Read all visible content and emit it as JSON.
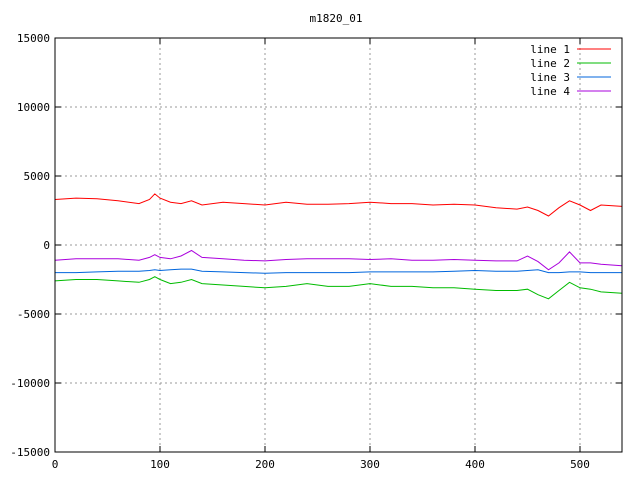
{
  "chart_data": {
    "type": "line",
    "title": "m1820_01",
    "xlabel": "",
    "ylabel": "",
    "xlim": [
      0,
      540
    ],
    "ylim": [
      -15000,
      15000
    ],
    "x_ticks": [
      {
        "value": 0,
        "label": "0"
      },
      {
        "value": 100,
        "label": "100"
      },
      {
        "value": 200,
        "label": "200"
      },
      {
        "value": 300,
        "label": "300"
      },
      {
        "value": 400,
        "label": "400"
      },
      {
        "value": 500,
        "label": "500"
      }
    ],
    "y_ticks": [
      {
        "value": 15000,
        "label": "15000"
      },
      {
        "value": 10000,
        "label": "10000"
      },
      {
        "value": 5000,
        "label": "5000"
      },
      {
        "value": 0,
        "label": "0"
      },
      {
        "value": -5000,
        "label": "-5000"
      },
      {
        "value": -10000,
        "label": "-10000"
      },
      {
        "value": -15000,
        "label": "-15000"
      }
    ],
    "grid": true,
    "legend_position": "top-right",
    "x": [
      0,
      20,
      40,
      60,
      80,
      90,
      95,
      100,
      110,
      120,
      130,
      140,
      160,
      180,
      200,
      220,
      240,
      260,
      280,
      300,
      320,
      340,
      360,
      380,
      400,
      420,
      440,
      450,
      460,
      470,
      480,
      490,
      500,
      510,
      520,
      540
    ],
    "series": [
      {
        "name": "line 1",
        "color": "#ff0000",
        "values": [
          3300,
          3400,
          3350,
          3200,
          3000,
          3300,
          3700,
          3400,
          3100,
          3000,
          3200,
          2900,
          3100,
          3000,
          2900,
          3100,
          2950,
          2950,
          3000,
          3100,
          3000,
          3000,
          2900,
          2950,
          2900,
          2700,
          2600,
          2750,
          2500,
          2100,
          2700,
          3200,
          2900,
          2500,
          2900,
          2800
        ]
      },
      {
        "name": "line 2",
        "color": "#00bb00",
        "values": [
          -2600,
          -2500,
          -2500,
          -2600,
          -2700,
          -2500,
          -2300,
          -2500,
          -2800,
          -2700,
          -2500,
          -2800,
          -2900,
          -3000,
          -3100,
          -3000,
          -2800,
          -3000,
          -3000,
          -2800,
          -3000,
          -3000,
          -3100,
          -3100,
          -3200,
          -3300,
          -3300,
          -3200,
          -3600,
          -3900,
          -3300,
          -2700,
          -3100,
          -3200,
          -3400,
          -3500
        ]
      },
      {
        "name": "line 3",
        "color": "#0066dd",
        "values": [
          -2000,
          -2000,
          -1950,
          -1900,
          -1900,
          -1850,
          -1800,
          -1850,
          -1800,
          -1750,
          -1750,
          -1900,
          -1950,
          -2000,
          -2050,
          -2000,
          -2000,
          -2000,
          -2000,
          -1950,
          -1950,
          -1950,
          -1950,
          -1900,
          -1850,
          -1900,
          -1900,
          -1850,
          -1800,
          -2000,
          -2000,
          -1950,
          -1950,
          -2000,
          -2000,
          -2000
        ]
      },
      {
        "name": "line 4",
        "color": "#aa00dd",
        "values": [
          -1100,
          -1000,
          -1000,
          -1000,
          -1100,
          -900,
          -700,
          -900,
          -1000,
          -800,
          -400,
          -900,
          -1000,
          -1100,
          -1150,
          -1050,
          -1000,
          -1000,
          -1000,
          -1050,
          -1000,
          -1100,
          -1100,
          -1050,
          -1100,
          -1150,
          -1150,
          -800,
          -1200,
          -1800,
          -1300,
          -500,
          -1300,
          -1300,
          -1400,
          -1500
        ]
      }
    ]
  }
}
